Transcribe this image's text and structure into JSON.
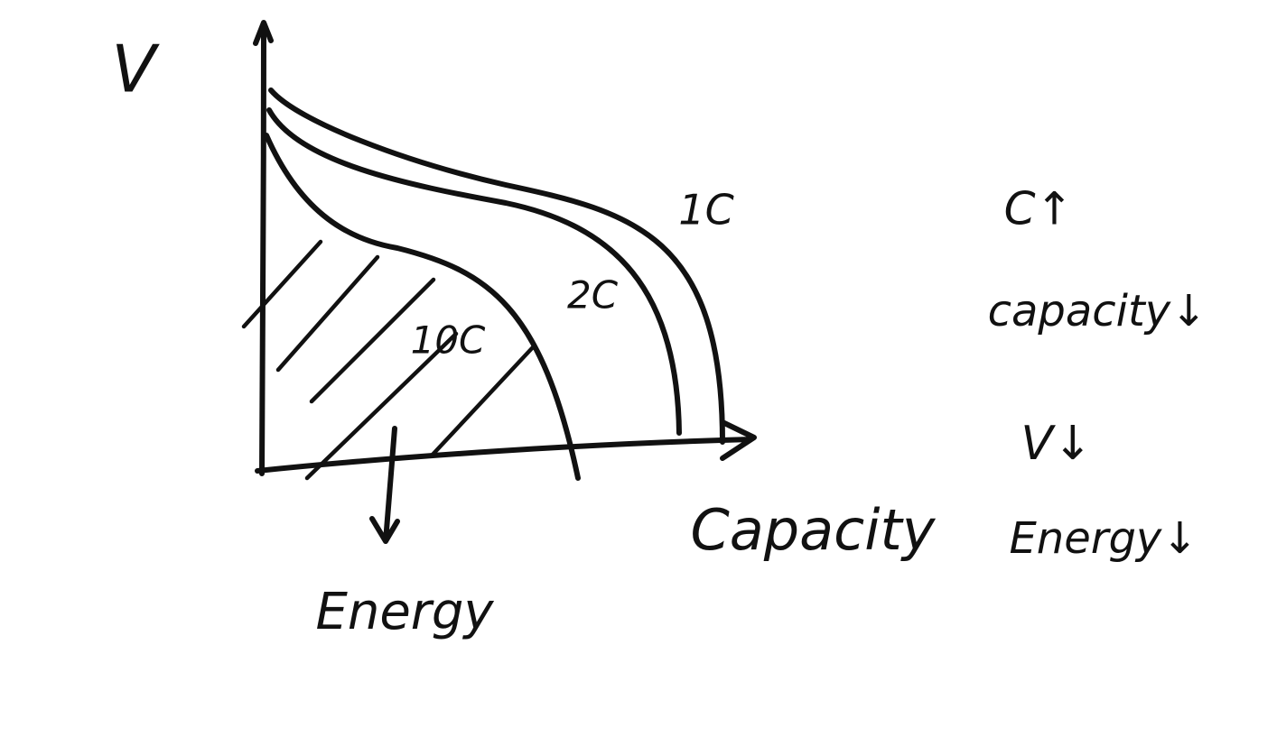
{
  "axes": {
    "y_label": "V",
    "x_label": "Capacity"
  },
  "curves": [
    {
      "label": "1C"
    },
    {
      "label": "2C"
    },
    {
      "label": "10C"
    }
  ],
  "shaded_region": {
    "label": "Energy"
  },
  "notes": [
    "C↑",
    "capacity↓",
    "V↓",
    "Energy↓"
  ]
}
